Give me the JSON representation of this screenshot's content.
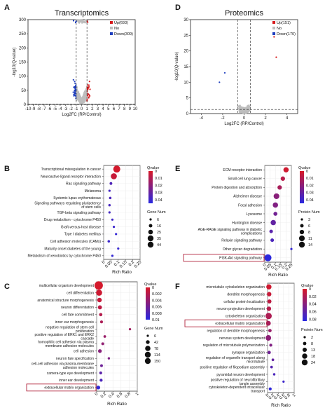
{
  "chart_data": [
    {
      "id": "A",
      "type": "scatter",
      "panel_label": "A",
      "title": "Transcriptomics",
      "xlabel": "Log2FC (RP/Control)",
      "ylabel": "-log10(Q-value)",
      "xlim": [
        -10,
        10
      ],
      "ylim": [
        0,
        300
      ],
      "xticks": [
        -10,
        -9,
        -8,
        -7,
        -6,
        -5,
        -4,
        -3,
        -2,
        -1,
        0,
        1,
        2,
        3,
        4,
        5,
        6,
        7,
        8,
        9,
        10
      ],
      "yticks": [
        0,
        50,
        100,
        150,
        200,
        250,
        300
      ],
      "thresholds": {
        "x": [
          -1,
          1
        ],
        "y": 1.3
      },
      "legend": [
        {
          "name": "Up(693)",
          "color": "#d7191c"
        },
        {
          "name": "No",
          "color": "#bdbdbd"
        },
        {
          "name": "Down(309)",
          "color": "#1f3fbf"
        }
      ]
    },
    {
      "id": "D",
      "type": "scatter",
      "panel_label": "D",
      "title": "Proteomics",
      "xlabel": "Log2FC (RP/Control)",
      "ylabel": "-log10(Q-value)",
      "xlim": [
        -5,
        5
      ],
      "ylim": [
        0,
        30
      ],
      "xticks": [
        -4,
        -2,
        0,
        2,
        4
      ],
      "yticks": [
        0,
        5,
        10,
        15,
        20,
        25,
        30
      ],
      "thresholds": {
        "x": [
          -0.58,
          0.58
        ],
        "y": 1.3
      },
      "legend": [
        {
          "name": "Up(151)",
          "color": "#d7191c"
        },
        {
          "name": "No",
          "color": "#bdbdbd"
        },
        {
          "name": "Down(170)",
          "color": "#1f3fbf"
        }
      ]
    },
    {
      "id": "B",
      "type": "scatter",
      "panel_label": "B",
      "xlabel": "Rich Ratio",
      "xlim": [
        0,
        0.25
      ],
      "xticks": [
        "0",
        "0.05",
        "0.1",
        "0.15",
        "0.2",
        "0.25"
      ],
      "color_title": "Qvalue",
      "color_ticks": [
        "0",
        "0.01",
        "0.02",
        "0.03",
        "0.04"
      ],
      "color_max": 0.045,
      "size_title": "Gene Num",
      "size_ticks": [
        6,
        16,
        25,
        35,
        44
      ],
      "size_range": [
        6,
        44
      ],
      "terms": [
        "Transcriptional misregulation in cancer",
        "Neuroactive ligand-receptor interaction",
        "Ras signaling pathway",
        "Melanoma",
        "Systemic lupus erythematosus",
        "Signaling pathways regulating pluripotency of stem cells",
        "TGF-beta signaling pathway",
        "Drug metabolism - cytochrome P450",
        "Graft-versus-host disease",
        "Type I diabetes mellitus",
        "Cell adhesion molecules (CAMs)",
        "Maturity onset diabetes of the young",
        "Metabolism of xenobiotics by cytochrome P450"
      ],
      "highlight": null,
      "points": [
        {
          "x": 0.09,
          "q": 0.001,
          "n": 44
        },
        {
          "x": 0.07,
          "q": 0.004,
          "n": 36
        },
        {
          "x": 0.05,
          "q": 0.035,
          "n": 10
        },
        {
          "x": 0.04,
          "q": 0.038,
          "n": 6
        },
        {
          "x": 0.045,
          "q": 0.036,
          "n": 8
        },
        {
          "x": 0.04,
          "q": 0.037,
          "n": 7
        },
        {
          "x": 0.04,
          "q": 0.038,
          "n": 6
        },
        {
          "x": 0.06,
          "q": 0.039,
          "n": 6
        },
        {
          "x": 0.07,
          "q": 0.04,
          "n": 6
        },
        {
          "x": 0.085,
          "q": 0.042,
          "n": 6
        },
        {
          "x": 0.035,
          "q": 0.04,
          "n": 8
        },
        {
          "x": 0.1,
          "q": 0.041,
          "n": 6
        },
        {
          "x": 0.06,
          "q": 0.042,
          "n": 6
        }
      ]
    },
    {
      "id": "E",
      "type": "scatter",
      "panel_label": "E",
      "xlabel": "Rich Ratio",
      "xlim": [
        0,
        0.25
      ],
      "xticks": [
        "0",
        "0.05",
        "0.1",
        "0.15",
        "0.2",
        "0.25"
      ],
      "color_title": "Qvalue",
      "color_ticks": [
        "0",
        "0.01",
        "0.02",
        "0.03",
        "0.04"
      ],
      "color_max": 0.045,
      "size_title": "Protein Num",
      "size_ticks": [
        3,
        6,
        8,
        11,
        14
      ],
      "size_range": [
        3,
        14
      ],
      "terms": [
        "ECM-receptor interaction",
        "Small cell lung cancer",
        "Protein digestion and absorption",
        "Alzheimer disease",
        "Focal adhesion",
        "Lysosome",
        "Huntington disease",
        "AGE-RAGE signaling pathway in diabetic complications",
        "Relaxin signaling pathway",
        "Other glycan degradation",
        "PI3K-Akt signaling pathway"
      ],
      "highlight": 10,
      "points": [
        {
          "x": 0.2,
          "q": 0.002,
          "n": 10
        },
        {
          "x": 0.17,
          "q": 0.008,
          "n": 8
        },
        {
          "x": 0.14,
          "q": 0.012,
          "n": 8
        },
        {
          "x": 0.11,
          "q": 0.02,
          "n": 11
        },
        {
          "x": 0.1,
          "q": 0.022,
          "n": 10
        },
        {
          "x": 0.1,
          "q": 0.026,
          "n": 7
        },
        {
          "x": 0.08,
          "q": 0.03,
          "n": 10
        },
        {
          "x": 0.06,
          "q": 0.032,
          "n": 6
        },
        {
          "x": 0.07,
          "q": 0.036,
          "n": 6
        },
        {
          "x": 0.25,
          "q": 0.042,
          "n": 3
        },
        {
          "x": 0.03,
          "q": 0.044,
          "n": 14
        }
      ]
    },
    {
      "id": "C",
      "type": "scatter",
      "panel_label": "C",
      "xlabel": "Rich Ratio",
      "xlim": [
        0,
        1
      ],
      "xticks": [
        "0",
        "0.2",
        "0.4",
        "0.6",
        "0.8",
        "1"
      ],
      "color_title": "Qvalue",
      "color_ticks": [
        "0",
        "0.002",
        "0.004",
        "0.006",
        "0.008",
        "0.01"
      ],
      "color_max": 0.01,
      "size_title": "Gene Num",
      "size_ticks": [
        6,
        42,
        78,
        114,
        150
      ],
      "size_range": [
        6,
        150
      ],
      "terms": [
        "multicellular organism development",
        "cell differentiation",
        "anatomical structure morphogenesis",
        "neuron differentiation",
        "cell fate commitment",
        "inner ear morphogenesis",
        "negative regulation of stem cell proliferation",
        "positive regulation of ERK1 and ERK2 cascade",
        "homophilic cell adhesion via plasma membrane adhesion molecules",
        "cell adhesion",
        "neuron fate specification",
        "cell-cell adhesion via plasma-membrane adhesion molecules",
        "camera-type eye development",
        "inner ear development",
        "extracellular matrix organization"
      ],
      "highlight": 14,
      "points": [
        {
          "x": 0.05,
          "q": 0.0002,
          "n": 150
        },
        {
          "x": 0.06,
          "q": 0.0006,
          "n": 95
        },
        {
          "x": 0.07,
          "q": 0.001,
          "n": 60
        },
        {
          "x": 0.08,
          "q": 0.0015,
          "n": 50
        },
        {
          "x": 0.1,
          "q": 0.002,
          "n": 30
        },
        {
          "x": 0.12,
          "q": 0.0025,
          "n": 20
        },
        {
          "x": 0.82,
          "q": 0.003,
          "n": 8
        },
        {
          "x": 0.2,
          "q": 0.0035,
          "n": 15
        },
        {
          "x": 0.15,
          "q": 0.004,
          "n": 20
        },
        {
          "x": 0.08,
          "q": 0.0045,
          "n": 40
        },
        {
          "x": 0.3,
          "q": 0.005,
          "n": 8
        },
        {
          "x": 0.12,
          "q": 0.006,
          "n": 18
        },
        {
          "x": 0.1,
          "q": 0.007,
          "n": 22
        },
        {
          "x": 0.11,
          "q": 0.008,
          "n": 24
        },
        {
          "x": 0.04,
          "q": 0.0095,
          "n": 42
        }
      ]
    },
    {
      "id": "F",
      "type": "scatter",
      "panel_label": "F",
      "xlabel": "Rich Ratio",
      "xlim": [
        0,
        1
      ],
      "xticks": [
        "0",
        "0.2",
        "0.4",
        "0.6",
        "0.8",
        "1"
      ],
      "color_title": "Qvalue",
      "color_ticks": [
        "0",
        "0.02",
        "0.04",
        "0.06",
        "0.08"
      ],
      "color_max": 0.085,
      "size_title": "Protein Num",
      "size_ticks": [
        2,
        8,
        13,
        18,
        24
      ],
      "size_range": [
        2,
        24
      ],
      "terms": [
        "microtubule cytoskeleton organization",
        "dendrite morphogenesis",
        "cellular protein localization",
        "neuron projection development",
        "cytoskeleton organization",
        "extracellular matrix organization",
        "regulation of dendrite morphogenesis",
        "nervous system development",
        "regulation of microtubule polymerization",
        "synapse organization",
        "regulation of organelle transport along microtubule",
        "positive regulation of filopodium assembly",
        "pyramidal neuron development",
        "positive regulation of neurofibrillary tangle assembly",
        "cytoskeleton-dependent intracellular transport"
      ],
      "highlight": 5,
      "points": [
        {
          "x": 0.05,
          "q": 0.004,
          "n": 18
        },
        {
          "x": 0.06,
          "q": 0.008,
          "n": 14
        },
        {
          "x": 0.07,
          "q": 0.012,
          "n": 12
        },
        {
          "x": 0.05,
          "q": 0.016,
          "n": 14
        },
        {
          "x": 0.04,
          "q": 0.02,
          "n": 24
        },
        {
          "x": 0.03,
          "q": 0.024,
          "n": 16
        },
        {
          "x": 0.09,
          "q": 0.03,
          "n": 8
        },
        {
          "x": 0.03,
          "q": 0.036,
          "n": 20
        },
        {
          "x": 0.12,
          "q": 0.042,
          "n": 6
        },
        {
          "x": 0.06,
          "q": 0.05,
          "n": 8
        },
        {
          "x": 0.2,
          "q": 0.056,
          "n": 4
        },
        {
          "x": 0.15,
          "q": 0.062,
          "n": 4
        },
        {
          "x": 0.25,
          "q": 0.068,
          "n": 3
        },
        {
          "x": 0.6,
          "q": 0.075,
          "n": 2
        },
        {
          "x": 0.1,
          "q": 0.082,
          "n": 6
        }
      ]
    }
  ]
}
